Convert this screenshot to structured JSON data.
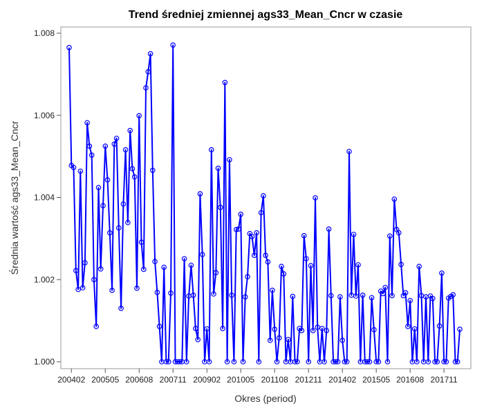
{
  "chart_data": {
    "type": "line",
    "title": "Trend średniej zmiennej ags33_Mean_Cncr w czasie",
    "xlabel": "Okres (period)",
    "ylabel": "Średnia wartość ags33_Mean_Cncr",
    "xlim": [
      "200401",
      "201807"
    ],
    "ylim": [
      1.0,
      1.008
    ],
    "x_tick_labels": [
      "200402",
      "200505",
      "200608",
      "200711",
      "200902",
      "201005",
      "201108",
      "201211",
      "201402",
      "201505",
      "201608",
      "201711"
    ],
    "y_tick_labels": [
      "1.000",
      "1.002",
      "1.004",
      "1.006",
      "1.008"
    ],
    "y_ticks": [
      1.0,
      1.002,
      1.004,
      1.006,
      1.008
    ],
    "grid": false,
    "legend": "none",
    "series": [
      {
        "color": "#0000ff",
        "marker": "open-circle",
        "x": [
          "200401",
          "200402",
          "200403",
          "200404",
          "200405",
          "200406",
          "200407",
          "200408",
          "200409",
          "200410",
          "200411",
          "200412",
          "200501",
          "200502",
          "200503",
          "200504",
          "200505",
          "200506",
          "200507",
          "200508",
          "200509",
          "200510",
          "200511",
          "200512",
          "200601",
          "200602",
          "200603",
          "200604",
          "200605",
          "200606",
          "200607",
          "200608",
          "200609",
          "200610",
          "200611",
          "200612",
          "200701",
          "200702",
          "200703",
          "200704",
          "200705",
          "200706",
          "200707",
          "200708",
          "200709",
          "200710",
          "200711",
          "200712",
          "200801",
          "200802",
          "200803",
          "200804",
          "200805",
          "200806",
          "200807",
          "200808",
          "200809",
          "200810",
          "200811",
          "200812",
          "200901",
          "200902",
          "200903",
          "200904",
          "200905",
          "200906",
          "200907",
          "200908",
          "200909",
          "200910",
          "200911",
          "200912",
          "201001",
          "201002",
          "201003",
          "201004",
          "201005",
          "201006",
          "201007",
          "201008",
          "201009",
          "201010",
          "201011",
          "201012",
          "201101",
          "201102",
          "201103",
          "201104",
          "201105",
          "201106",
          "201107",
          "201108",
          "201109",
          "201110",
          "201111",
          "201112",
          "201201",
          "201202",
          "201203",
          "201204",
          "201205",
          "201206",
          "201207",
          "201208",
          "201209",
          "201210",
          "201211",
          "201212",
          "201301",
          "201302",
          "201303",
          "201304",
          "201305",
          "201306",
          "201307",
          "201308",
          "201309",
          "201310",
          "201311",
          "201312",
          "201401",
          "201402",
          "201403",
          "201404",
          "201405",
          "201406",
          "201407",
          "201408",
          "201409",
          "201410",
          "201411",
          "201412",
          "201501",
          "201502",
          "201503",
          "201504",
          "201505",
          "201506",
          "201507",
          "201508",
          "201509",
          "201510",
          "201511",
          "201512",
          "201601",
          "201602",
          "201603",
          "201604",
          "201605",
          "201606",
          "201607",
          "201608",
          "201609",
          "201610",
          "201611",
          "201612",
          "201701",
          "201702",
          "201703",
          "201704",
          "201705",
          "201706",
          "201707",
          "201708",
          "201709",
          "201710",
          "201711",
          "201712",
          "201801",
          "201802",
          "201803",
          "201804",
          "201805",
          "201806"
        ],
        "values": [
          1.00765,
          1.00478,
          1.00473,
          1.00222,
          1.00176,
          1.00464,
          1.0018,
          1.00241,
          1.00582,
          1.00525,
          1.00503,
          1.002,
          1.00086,
          1.00424,
          1.00226,
          1.0038,
          1.00525,
          1.00443,
          1.00314,
          1.00174,
          1.0053,
          1.00544,
          1.00326,
          1.0013,
          1.00384,
          1.00516,
          1.00339,
          1.00563,
          1.0047,
          1.0045,
          1.00179,
          1.00599,
          1.00291,
          1.00225,
          1.00667,
          1.00706,
          1.0075,
          1.00466,
          1.00244,
          1.00169,
          1.00086,
          1.0,
          1.0023,
          1.0,
          1.0,
          1.00167,
          1.00771,
          1.0,
          1.0,
          1.0,
          1.0,
          1.00251,
          1.0,
          1.0016,
          1.00235,
          1.00162,
          1.00081,
          1.00054,
          1.00409,
          1.00261,
          1.0,
          1.0008,
          1.0,
          1.00516,
          1.00165,
          1.00217,
          1.00471,
          1.00376,
          1.00081,
          1.0068,
          1.0,
          1.00492,
          1.00162,
          1.0,
          1.00322,
          1.00323,
          1.00359,
          1.0,
          1.00158,
          1.00207,
          1.00312,
          1.00305,
          1.00259,
          1.00314,
          1.0,
          1.00363,
          1.00404,
          1.00259,
          1.00243,
          1.00052,
          1.00174,
          1.00079,
          1.0,
          1.00058,
          1.00232,
          1.00214,
          1.0,
          1.00054,
          1.0,
          1.00159,
          1.0,
          1.0,
          1.00081,
          1.00076,
          1.00307,
          1.00251,
          1.0,
          1.00234,
          1.00076,
          1.00399,
          1.00084,
          1.0,
          1.00081,
          1.0,
          1.00076,
          1.00323,
          1.00161,
          1.0,
          1.0,
          1.0,
          1.00158,
          1.00052,
          1.0,
          1.0,
          1.00512,
          1.00162,
          1.0031,
          1.0016,
          1.00236,
          1.0,
          1.00162,
          1.0,
          1.0,
          1.0,
          1.00156,
          1.00078,
          1.0,
          1.0,
          1.00172,
          1.00166,
          1.00181,
          1.0,
          1.00306,
          1.00161,
          1.00396,
          1.00322,
          1.00314,
          1.00237,
          1.00161,
          1.00168,
          1.00086,
          1.00149,
          1.0,
          1.0008,
          1.0,
          1.00232,
          1.00161,
          1.0,
          1.00158,
          1.0,
          1.0016,
          1.00154,
          1.0,
          1.0,
          1.00087,
          1.00216,
          1.0,
          1.0,
          1.00155,
          1.00159,
          1.00163,
          1.0,
          1.0,
          1.00079
        ]
      }
    ]
  }
}
